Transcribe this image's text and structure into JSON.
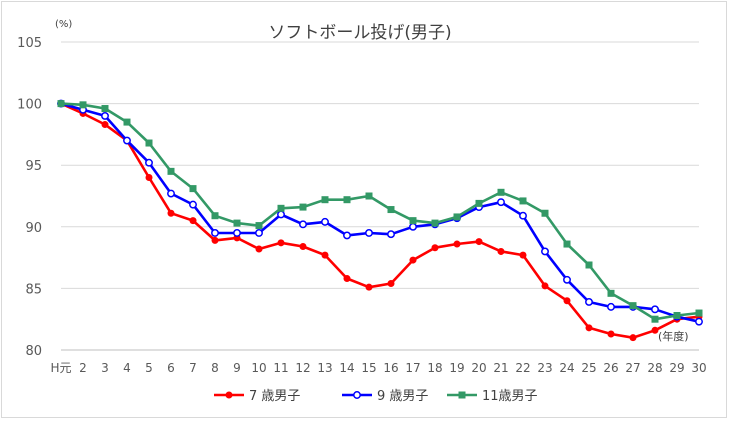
{
  "chart_data": {
    "type": "line",
    "title": "ソフトボール投げ(男子)",
    "unit_label": "(%)",
    "x_unit_label": "(年度)",
    "categories": [
      "H元",
      "2",
      "3",
      "4",
      "5",
      "6",
      "7",
      "8",
      "9",
      "10",
      "11",
      "12",
      "13",
      "14",
      "15",
      "16",
      "17",
      "18",
      "19",
      "20",
      "21",
      "22",
      "23",
      "24",
      "25",
      "26",
      "27",
      "28",
      "29",
      "30"
    ],
    "yticks": [
      "80",
      "85",
      "90",
      "95",
      "100",
      "105"
    ],
    "ylim": [
      80,
      105
    ],
    "grid": true,
    "legend_position": "bottom",
    "series": [
      {
        "name": "7 歳男子",
        "color": "#ff0000",
        "marker": "filled-circle",
        "values": [
          100,
          99.2,
          98.3,
          97.0,
          94.0,
          91.1,
          90.5,
          88.9,
          89.1,
          88.2,
          88.7,
          88.4,
          87.7,
          85.8,
          85.1,
          85.4,
          87.3,
          88.3,
          88.6,
          88.8,
          88.0,
          87.7,
          85.2,
          84.0,
          81.8,
          81.3,
          81.0,
          81.6,
          82.5,
          82.7
        ]
      },
      {
        "name": "9 歳男子",
        "color": "#0000ff",
        "marker": "open-circle",
        "values": [
          100,
          99.5,
          99.0,
          97.0,
          95.2,
          92.7,
          91.8,
          89.5,
          89.5,
          89.5,
          91.0,
          90.2,
          90.4,
          89.3,
          89.5,
          89.4,
          90.0,
          90.2,
          90.7,
          91.6,
          92.0,
          90.9,
          88.0,
          85.7,
          83.9,
          83.5,
          83.5,
          83.3,
          82.7,
          82.3
        ]
      },
      {
        "name": "11歳男子",
        "color": "#339966",
        "marker": "filled-square",
        "values": [
          100,
          99.9,
          99.6,
          98.5,
          96.8,
          94.5,
          93.1,
          90.9,
          90.3,
          90.1,
          91.5,
          91.6,
          92.2,
          92.2,
          92.5,
          91.4,
          90.5,
          90.3,
          90.8,
          91.9,
          92.8,
          92.1,
          91.1,
          88.6,
          86.9,
          84.6,
          83.6,
          82.5,
          82.8,
          83.0
        ]
      }
    ]
  }
}
